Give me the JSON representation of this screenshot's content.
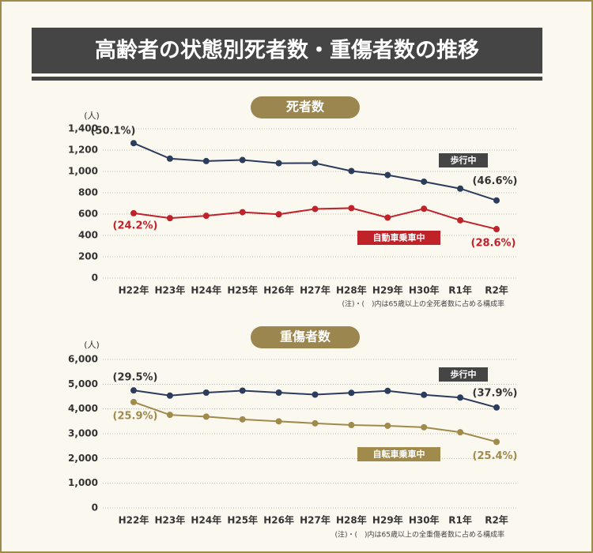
{
  "title": "高齢者の状態別死者数・重傷者数の推移",
  "chart_data": [
    {
      "type": "line",
      "title": "死者数",
      "y_label": "(人)",
      "categories": [
        "H22年",
        "H23年",
        "H24年",
        "H25年",
        "H26年",
        "H27年",
        "H28年",
        "H29年",
        "H30年",
        "R1年",
        "R2年"
      ],
      "series": [
        {
          "name": "歩行中",
          "color": "#2c3c5c",
          "values": [
            1265,
            1120,
            1097,
            1107,
            1077,
            1078,
            1004,
            966,
            904,
            839,
            728
          ]
        },
        {
          "name": "自動車乗車中",
          "color": "#c0222a",
          "values": [
            608,
            562,
            584,
            618,
            598,
            648,
            656,
            567,
            650,
            542,
            459
          ]
        }
      ],
      "ylim": [
        0,
        1400
      ],
      "yticks": [
        0,
        200,
        400,
        600,
        800,
        {
          "value": 1000,
          "label": "1,000"
        },
        {
          "value": 1200,
          "label": "1,200"
        },
        {
          "value": 1400,
          "label": "1,400"
        }
      ],
      "grid": true,
      "annotations": [
        "(50.1%)",
        "(46.6%)",
        "(24.2%)",
        "(28.6%)"
      ],
      "note": "(注)・(　)内は65歳以上の全死者数に占める構成率"
    },
    {
      "type": "line",
      "title": "重傷者数",
      "y_label": "(人)",
      "categories": [
        "H22年",
        "H23年",
        "H24年",
        "H25年",
        "H26年",
        "H27年",
        "H28年",
        "H29年",
        "H30年",
        "R1年",
        "R2年"
      ],
      "series": [
        {
          "name": "歩行中",
          "color": "#2c3c5c",
          "values": [
            4750,
            4540,
            4660,
            4740,
            4660,
            4580,
            4650,
            4730,
            4570,
            4460,
            4060
          ]
        },
        {
          "name": "自転車乗車中",
          "color": "#a08a4c",
          "values": [
            4280,
            3760,
            3690,
            3580,
            3500,
            3420,
            3350,
            3320,
            3260,
            3060,
            2670
          ]
        }
      ],
      "ylim": [
        0,
        6000
      ],
      "yticks": [
        0,
        {
          "value": 1000,
          "label": "1,000"
        },
        {
          "value": 2000,
          "label": "2,000"
        },
        {
          "value": 3000,
          "label": "3,000"
        },
        {
          "value": 4000,
          "label": "4,000"
        },
        {
          "value": 5000,
          "label": "5,000"
        },
        {
          "value": 6000,
          "label": "6,000"
        }
      ],
      "grid": true,
      "annotations": [
        "(29.5%)",
        "(37.9%)",
        "(25.9%)",
        "(25.4%)"
      ],
      "note": "(注)・(　)内は65歳以上の全重傷者数に占める構成率"
    }
  ]
}
